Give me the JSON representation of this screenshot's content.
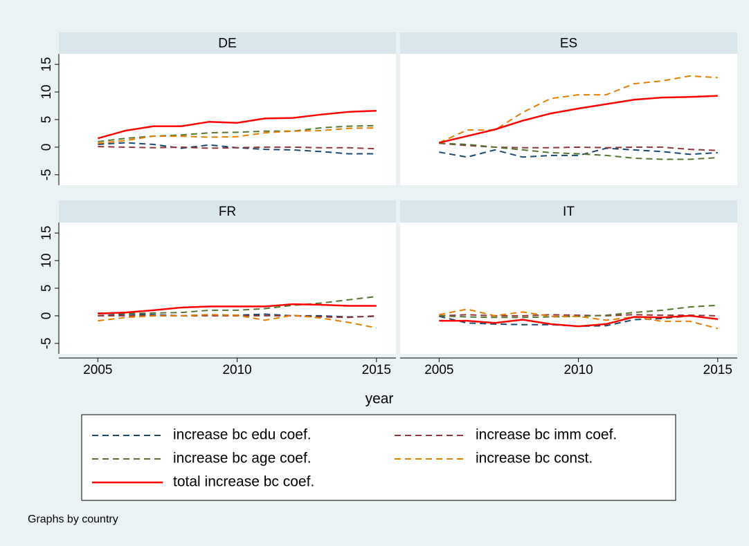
{
  "chart_data": [
    {
      "type": "line",
      "title": "DE",
      "x": [
        2005,
        2006,
        2007,
        2008,
        2009,
        2010,
        2011,
        2012,
        2013,
        2014,
        2015
      ],
      "xlim": [
        2003.6,
        2015.7
      ],
      "ylim": [
        -6.9,
        16.9
      ],
      "xticks": [
        2005,
        2010,
        2015
      ],
      "yticks": [
        -5,
        0,
        5,
        10,
        15
      ],
      "series": [
        {
          "values": [
            0.5,
            0.8,
            0.5,
            -0.2,
            0.4,
            -0.1,
            -0.4,
            -0.5,
            -0.8,
            -1.2,
            -1.2
          ]
        },
        {
          "values": [
            0.1,
            0,
            -0.1,
            0,
            -0.2,
            -0.1,
            0,
            0,
            -0.1,
            -0.1,
            -0.3
          ]
        },
        {
          "values": [
            1,
            1.6,
            2,
            2.2,
            2.6,
            2.7,
            2.9,
            2.9,
            3.5,
            3.8,
            3.9
          ]
        },
        {
          "values": [
            0.7,
            1.2,
            2,
            2,
            1.8,
            1.9,
            2.6,
            2.9,
            3,
            3.4,
            3.5
          ]
        },
        {
          "values": [
            1.6,
            3,
            3.8,
            3.8,
            4.6,
            4.4,
            5.2,
            5.3,
            5.9,
            6.4,
            6.6
          ]
        }
      ]
    },
    {
      "type": "line",
      "title": "ES",
      "x": [
        2005,
        2006,
        2007,
        2008,
        2009,
        2010,
        2011,
        2012,
        2013,
        2014,
        2015
      ],
      "xlim": [
        2003.6,
        2015.7
      ],
      "ylim": [
        -6.9,
        16.9
      ],
      "xticks": [
        2005,
        2010,
        2015
      ],
      "yticks": [
        -5,
        0,
        5,
        10,
        15
      ],
      "series": [
        {
          "values": [
            -0.9,
            -1.8,
            -0.5,
            -1.8,
            -1.5,
            -1.5,
            -0.2,
            -0.5,
            -0.8,
            -1.3,
            -1
          ]
        },
        {
          "values": [
            0.7,
            0.3,
            0,
            -0.1,
            -0.1,
            0,
            -0.1,
            0,
            0,
            -0.4,
            -0.6
          ]
        },
        {
          "values": [
            0.7,
            0.5,
            0,
            -0.5,
            -1,
            -1.2,
            -1.5,
            -2,
            -2.2,
            -2.2,
            -1.9
          ]
        },
        {
          "values": [
            0.8,
            3.1,
            3.1,
            6.3,
            8.8,
            9.5,
            9.5,
            11.5,
            12,
            12.9,
            12.6
          ]
        },
        {
          "values": [
            0.8,
            2,
            3.2,
            4.8,
            6.1,
            7,
            7.8,
            8.6,
            9,
            9.1,
            9.3
          ]
        }
      ]
    },
    {
      "type": "line",
      "title": "FR",
      "x": [
        2005,
        2006,
        2007,
        2008,
        2009,
        2010,
        2011,
        2012,
        2013,
        2014,
        2015
      ],
      "xlim": [
        2003.6,
        2015.7
      ],
      "ylim": [
        -6.9,
        16.9
      ],
      "xticks": [
        2005,
        2010,
        2015
      ],
      "yticks": [
        -5,
        0,
        5,
        10,
        15
      ],
      "series": [
        {
          "values": [
            0,
            0.3,
            0.2,
            0,
            0.2,
            0.1,
            0.3,
            0,
            0,
            -0.2,
            -0.1
          ]
        },
        {
          "values": [
            0,
            0,
            0,
            0,
            0,
            0,
            0,
            0,
            -0.2,
            -0.3,
            0
          ]
        },
        {
          "values": [
            0.5,
            0.4,
            0.5,
            0.6,
            1,
            1,
            1.3,
            1.9,
            2.3,
            2.9,
            3.5
          ]
        },
        {
          "values": [
            -0.9,
            -0.3,
            0,
            0,
            0.2,
            0.1,
            -0.8,
            0.1,
            -0.4,
            -1.2,
            -2.2
          ]
        },
        {
          "values": [
            0.4,
            0.6,
            1,
            1.5,
            1.7,
            1.7,
            1.7,
            2.1,
            2,
            1.8,
            1.8
          ]
        }
      ]
    },
    {
      "type": "line",
      "title": "IT",
      "x": [
        2005,
        2006,
        2007,
        2008,
        2009,
        2010,
        2011,
        2012,
        2013,
        2014,
        2015
      ],
      "xlim": [
        2003.6,
        2015.7
      ],
      "ylim": [
        -6.9,
        16.9
      ],
      "xticks": [
        2005,
        2010,
        2015
      ],
      "yticks": [
        -5,
        0,
        5,
        10,
        15
      ],
      "series": [
        {
          "values": [
            -0.1,
            -1.3,
            -1.5,
            -1.6,
            -1.6,
            -1.9,
            -1.8,
            -0.7,
            -0.5,
            0,
            -0.6
          ]
        },
        {
          "values": [
            0,
            0.2,
            0,
            0,
            0.2,
            0.1,
            0,
            0.2,
            0.1,
            0.1,
            0
          ]
        },
        {
          "values": [
            0,
            -0.2,
            -0.3,
            -0.3,
            -0.2,
            -0.1,
            0.1,
            0.6,
            1,
            1.6,
            1.9
          ]
        },
        {
          "values": [
            0.2,
            1.2,
            0,
            0.7,
            -0.1,
            -0.1,
            -0.8,
            -0.2,
            -1,
            -1,
            -2.3
          ]
        },
        {
          "values": [
            -0.9,
            -0.9,
            -1.3,
            -0.7,
            -1.5,
            -1.9,
            -1.5,
            -0.2,
            -0.3,
            0,
            -0.6
          ]
        }
      ]
    }
  ],
  "x_label": "year",
  "legend": [
    {
      "name": "increase bc edu coef.",
      "color": "#1a476f",
      "dashed": true
    },
    {
      "name": "increase bc imm coef.",
      "color": "#90353b",
      "dashed": true
    },
    {
      "name": "increase bc age coef.",
      "color": "#55752f",
      "dashed": true
    },
    {
      "name": "increase bc const.",
      "color": "#e37e00",
      "dashed": true
    },
    {
      "name": "total increase bc coef.",
      "color": "#ff0000",
      "dashed": false
    }
  ],
  "note": "Graphs by country"
}
